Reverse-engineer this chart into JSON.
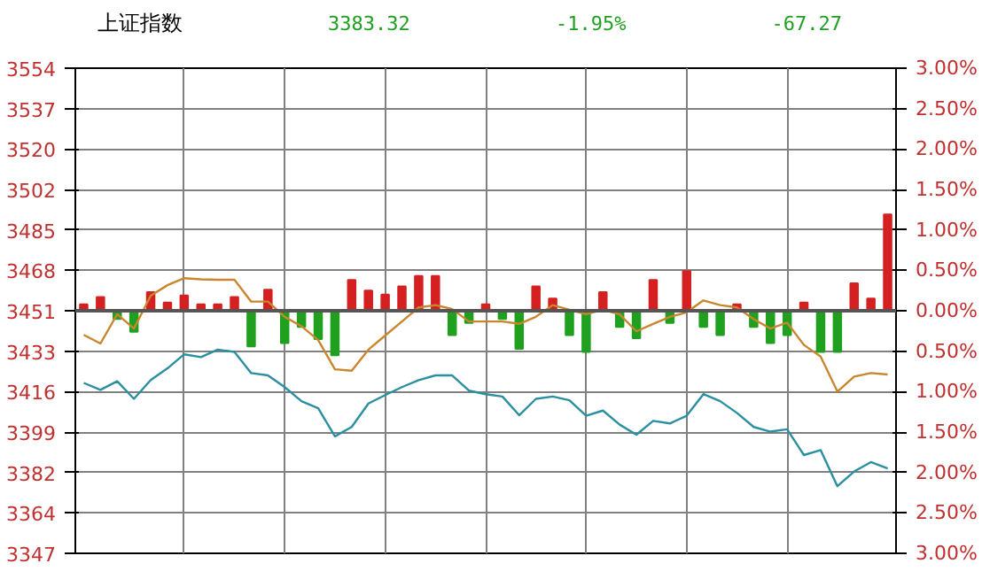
{
  "chart_data": {
    "type": "line",
    "title": "上证指数",
    "annotations": [
      "3383.32",
      "-1.95%",
      "-67.27"
    ],
    "categories": [
      null,
      null,
      null,
      null,
      null,
      null,
      null,
      null,
      null,
      null,
      null,
      null,
      null,
      null,
      null,
      null,
      null,
      null,
      null,
      null,
      null,
      null,
      null,
      null,
      null,
      null,
      null,
      null,
      null,
      null,
      null,
      null,
      null,
      null,
      null,
      null,
      null,
      null,
      null,
      null,
      null,
      null,
      null,
      null,
      null,
      null,
      null,
      null,
      null
    ],
    "ylim": [
      3347.07,
      3554.11
    ],
    "yticks": [
      {
        "value": 3347.07,
        "label": "3347"
      },
      {
        "value": 3364.32,
        "label": "3364"
      },
      {
        "value": 3381.58,
        "label": "3382"
      },
      {
        "value": 3398.83,
        "label": "3399"
      },
      {
        "value": 3416.08,
        "label": "3416"
      },
      {
        "value": 3433.34,
        "label": "3433"
      },
      {
        "value": 3450.59,
        "label": "3451"
      },
      {
        "value": 3467.84,
        "label": "3468"
      },
      {
        "value": 3485.1,
        "label": "3485"
      },
      {
        "value": 3502.35,
        "label": "3502"
      },
      {
        "value": 3519.6,
        "label": "3520"
      },
      {
        "value": 3536.85,
        "label": "3537"
      },
      {
        "value": 3554.11,
        "label": "3554"
      }
    ],
    "y2lim": [
      -3,
      3
    ],
    "y2ticks": [
      {
        "value": -3,
        "label": "3.00%"
      },
      {
        "value": -2.5,
        "label": "2.50%"
      },
      {
        "value": -2,
        "label": "2.00%"
      },
      {
        "value": -1.5,
        "label": "1.50%"
      },
      {
        "value": -1,
        "label": "1.00%"
      },
      {
        "value": -0.5,
        "label": "0.50%"
      },
      {
        "value": 0,
        "label": "0.00%"
      },
      {
        "value": 0.5,
        "label": "0.50%"
      },
      {
        "value": 1,
        "label": "1.00%"
      },
      {
        "value": 1.5,
        "label": "1.50%"
      },
      {
        "value": 2,
        "label": "2.00%"
      },
      {
        "value": 2.5,
        "label": "2.50%"
      },
      {
        "value": 3,
        "label": "3.00%"
      }
    ],
    "grid": true,
    "ref_lines": [
      {
        "axis": "y2",
        "value": 0,
        "color": "#555555"
      }
    ],
    "series": [
      {
        "type": "bar",
        "axis": "y2",
        "values": [
          0.08,
          0.17,
          -0.1,
          -0.26,
          0.23,
          0.1,
          0.19,
          0.08,
          0.08,
          0.17,
          -0.44,
          0.26,
          -0.4,
          -0.2,
          -0.35,
          -0.55,
          0.38,
          0.25,
          0.2,
          0.3,
          0.43,
          0.43,
          -0.3,
          -0.15,
          0.08,
          -0.1,
          -0.47,
          0.3,
          0.15,
          -0.3,
          -0.51,
          0.23,
          -0.2,
          -0.34,
          0.38,
          -0.15,
          0.49,
          -0.2,
          -0.3,
          0.08,
          -0.2,
          -0.4,
          -0.3,
          0.1,
          -0.51,
          -0.51,
          0.34,
          0.15,
          1.19
        ],
        "colors": [
          "#d42020",
          "#d42020",
          "#1fa01f",
          "#1fa01f",
          "#d42020",
          "#d42020",
          "#d42020",
          "#d42020",
          "#d42020",
          "#d42020",
          "#1fa01f",
          "#d42020",
          "#1fa01f",
          "#1fa01f",
          "#1fa01f",
          "#1fa01f",
          "#d42020",
          "#d42020",
          "#d42020",
          "#d42020",
          "#d42020",
          "#d42020",
          "#1fa01f",
          "#1fa01f",
          "#d42020",
          "#1fa01f",
          "#1fa01f",
          "#d42020",
          "#d42020",
          "#1fa01f",
          "#1fa01f",
          "#d42020",
          "#1fa01f",
          "#1fa01f",
          "#d42020",
          "#1fa01f",
          "#d42020",
          "#1fa01f",
          "#1fa01f",
          "#d42020",
          "#1fa01f",
          "#1fa01f",
          "#1fa01f",
          "#d42020",
          "#1fa01f",
          "#1fa01f",
          "#d42020",
          "#d42020",
          "#d42020"
        ]
      },
      {
        "color": "#c8862e",
        "values": [
          3440.3,
          3436.6,
          3449.1,
          3443,
          3457,
          3461.5,
          3464.5,
          3464,
          3463.8,
          3463.8,
          3454.5,
          3454.5,
          3448,
          3444,
          3438.1,
          3425.6,
          3425,
          3434,
          3440,
          3446,
          3452,
          3453,
          3451.3,
          3446,
          3446,
          3446,
          3445,
          3448,
          3453,
          3451,
          3449.1,
          3451,
          3449,
          3441.8,
          3445,
          3448,
          3449.9,
          3455,
          3453,
          3452,
          3447,
          3443,
          3445.5,
          3436,
          3431,
          3416.1,
          3422.5,
          3424,
          3423.4
        ]
      },
      {
        "color": "#2a8fa0",
        "values": [
          3419.8,
          3416.8,
          3420.5,
          3413,
          3421,
          3426,
          3432,
          3430.8,
          3434,
          3433.0,
          3424,
          3423,
          3418,
          3412,
          3409,
          3397,
          3401,
          3411,
          3414.6,
          3418,
          3421,
          3423,
          3423,
          3416.5,
          3415,
          3414,
          3406,
          3413,
          3414,
          3412.4,
          3405.8,
          3408,
          3402,
          3397.7,
          3403.6,
          3402.5,
          3405.8,
          3415,
          3412,
          3407,
          3401,
          3399,
          3400,
          3389,
          3391.1,
          3375.7,
          3382,
          3386,
          3383.3
        ]
      }
    ]
  }
}
